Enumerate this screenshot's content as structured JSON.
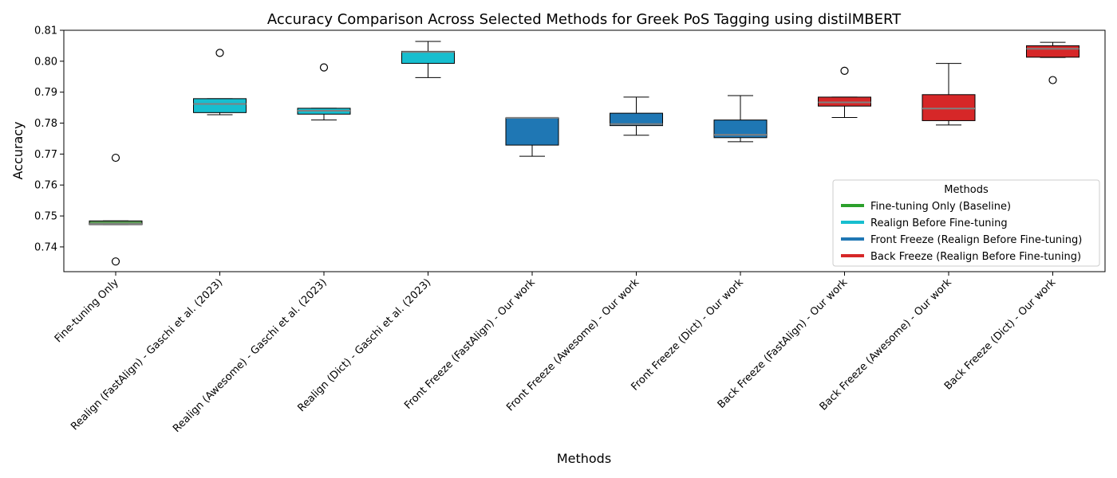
{
  "chart_data": {
    "type": "box",
    "title": "Accuracy Comparison Across Selected Methods for Greek PoS Tagging using distilMBERT",
    "xlabel": "Methods",
    "ylabel": "Accuracy",
    "ylim": [
      0.732,
      0.81
    ],
    "yticks": [
      "0.74",
      "0.75",
      "0.76",
      "0.77",
      "0.78",
      "0.79",
      "0.80",
      "0.81"
    ],
    "categories": [
      "Fine-tuning Only",
      "Realign (FastAlign) - Gaschi et al. (2023)",
      "Realign (Awesome) - Gaschi et al. (2023)",
      "Realign (Dict) - Gaschi et al. (2023)",
      "Front Freeze (FastAlign) - Our work",
      "Front Freeze (Awesome) - Our work",
      "Front Freeze (Dict) - Our work",
      "Back Freeze (FastAlign) - Our work",
      "Back Freeze (Awesome) - Our work",
      "Back Freeze (Dict) - Our work"
    ],
    "boxes": [
      {
        "group": 0,
        "whislo": 0.7472,
        "q1": 0.7472,
        "med": 0.7474,
        "q3": 0.7484,
        "whishi": 0.7484,
        "fliers": [
          0.7688,
          0.7353
        ]
      },
      {
        "group": 1,
        "whislo": 0.7827,
        "q1": 0.7834,
        "med": 0.7862,
        "q3": 0.7879,
        "whishi": 0.7879,
        "fliers": [
          0.8027
        ]
      },
      {
        "group": 1,
        "whislo": 0.781,
        "q1": 0.7829,
        "med": 0.784,
        "q3": 0.7848,
        "whishi": 0.7848,
        "fliers": [
          0.798
        ]
      },
      {
        "group": 1,
        "whislo": 0.7947,
        "q1": 0.7993,
        "med": 0.803,
        "q3": 0.8032,
        "whishi": 0.8064,
        "fliers": []
      },
      {
        "group": 2,
        "whislo": 0.7693,
        "q1": 0.7729,
        "med": 0.7817,
        "q3": 0.7817,
        "whishi": 0.7817,
        "fliers": []
      },
      {
        "group": 2,
        "whislo": 0.7761,
        "q1": 0.7792,
        "med": 0.7797,
        "q3": 0.7832,
        "whishi": 0.7884,
        "fliers": []
      },
      {
        "group": 2,
        "whislo": 0.774,
        "q1": 0.7753,
        "med": 0.7762,
        "q3": 0.781,
        "whishi": 0.7889,
        "fliers": []
      },
      {
        "group": 3,
        "whislo": 0.7818,
        "q1": 0.7855,
        "med": 0.7867,
        "q3": 0.7884,
        "whishi": 0.7884,
        "fliers": [
          0.7969
        ]
      },
      {
        "group": 3,
        "whislo": 0.7794,
        "q1": 0.7808,
        "med": 0.7847,
        "q3": 0.7892,
        "whishi": 0.7993,
        "fliers": []
      },
      {
        "group": 3,
        "whislo": 0.8012,
        "q1": 0.8013,
        "med": 0.804,
        "q3": 0.805,
        "whishi": 0.8061,
        "fliers": [
          0.7939
        ]
      }
    ],
    "legend": {
      "title": "Methods",
      "position": "lower-right",
      "entries": [
        {
          "label": "Fine-tuning Only (Baseline)",
          "color": "#2ca02c"
        },
        {
          "label": "Realign Before Fine-tuning",
          "color": "#17becf"
        },
        {
          "label": "Front Freeze (Realign Before Fine-tuning)",
          "color": "#1f77b4"
        },
        {
          "label": "Back Freeze (Realign Before Fine-tuning)",
          "color": "#d62728"
        }
      ]
    },
    "box_fill_colors": [
      "#5b9a55",
      "#17becf",
      "#1f77b4",
      "#d62728"
    ],
    "median_color": "#808080",
    "grid": false
  }
}
